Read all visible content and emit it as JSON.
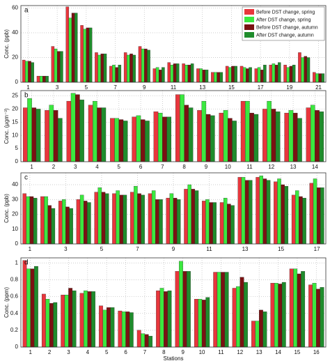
{
  "chart_data": [
    {
      "type": "bar",
      "panel_label": "a",
      "ylabel": "Conc. (ppb)",
      "grid": true,
      "legend": "upper right",
      "categories": [
        "1",
        null,
        "3",
        null,
        "5",
        null,
        "7",
        null,
        "9",
        null,
        "11",
        null,
        "13",
        null,
        "15",
        null,
        "17",
        null,
        "19",
        null,
        "21"
      ],
      "ylim": [
        0,
        62
      ],
      "yticks": [
        0,
        20,
        40,
        60
      ],
      "series": [
        {
          "name": "Before DST change, spring",
          "color": "#e8363c",
          "values": [
            18,
            5,
            29,
            61,
            46,
            24,
            13,
            24,
            29,
            11,
            16,
            15,
            11,
            8,
            13,
            13,
            11,
            14,
            14,
            24,
            8
          ]
        },
        {
          "name": "After DST change, spring",
          "color": "#3be83f",
          "values": [
            17,
            5,
            27,
            52,
            43,
            22,
            14,
            22,
            27,
            12,
            14,
            14,
            11,
            8,
            12,
            12,
            12,
            15,
            12,
            20,
            7
          ]
        },
        {
          "name": "Before DST change, autumn",
          "color": "#7a1212",
          "values": [
            17,
            5,
            25,
            56,
            44,
            23,
            12,
            23,
            27,
            10,
            15,
            14,
            10,
            8,
            13,
            11,
            10,
            14,
            13,
            21,
            7
          ]
        },
        {
          "name": "After DST change, autumn",
          "color": "#1f8c2c",
          "values": [
            16,
            5,
            25,
            56,
            44,
            23,
            14,
            22,
            26,
            12,
            15,
            15,
            10,
            8,
            13,
            12,
            14,
            16,
            14,
            20,
            7
          ]
        }
      ]
    },
    {
      "type": "bar",
      "panel_label": "b",
      "ylabel": "Conc. (μgm⁻³)",
      "grid": true,
      "categories": [
        "1",
        "2",
        "3",
        "4",
        "5",
        "6",
        "7",
        "8",
        "9",
        "10",
        "11",
        "12",
        "13",
        "14"
      ],
      "ylim": [
        0,
        27
      ],
      "yticks": [
        0,
        5,
        10,
        15,
        20,
        25
      ],
      "series": [
        {
          "color": "#e8363c",
          "values": [
            20.5,
            19.5,
            23,
            21.5,
            16.5,
            17,
            19,
            25.5,
            19.5,
            18.5,
            23,
            20,
            18.5,
            20.5
          ]
        },
        {
          "color": "#3be83f",
          "values": [
            24,
            21.5,
            26,
            23,
            16.5,
            17.5,
            18.5,
            25.5,
            23,
            19.5,
            23,
            23,
            19.5,
            21.5
          ]
        },
        {
          "color": "#7a1212",
          "values": [
            20.5,
            19.5,
            25.5,
            20.5,
            16,
            16,
            17,
            21.5,
            18,
            16.5,
            18.5,
            20,
            18.5,
            19.5
          ]
        },
        {
          "color": "#1f8c2c",
          "values": [
            20,
            16.5,
            23.5,
            20.5,
            15.5,
            15.5,
            17,
            20.5,
            17.5,
            15.5,
            18,
            19,
            16.5,
            19
          ]
        }
      ]
    },
    {
      "type": "bar",
      "panel_label": "c",
      "ylabel": "Conc. (ppb)",
      "grid": true,
      "categories": [
        "1",
        null,
        "3",
        null,
        "5",
        null,
        "7",
        null,
        "9",
        null,
        "11",
        null,
        "13",
        null,
        "15",
        null,
        "17"
      ],
      "ylim": [
        0,
        48
      ],
      "yticks": [
        0,
        10,
        20,
        30,
        40
      ],
      "series": [
        {
          "color": "#e8363c",
          "values": [
            34,
            32,
            29,
            30,
            35,
            34,
            35,
            34,
            31,
            37,
            29,
            28,
            45,
            45,
            42,
            33,
            41
          ]
        },
        {
          "color": "#3be83f",
          "values": [
            32,
            32,
            30,
            33,
            38,
            36,
            39,
            36,
            34,
            40,
            30,
            31,
            45,
            46,
            44,
            36,
            44
          ]
        },
        {
          "color": "#7a1212",
          "values": [
            32,
            26,
            25,
            29,
            35,
            33,
            34,
            30,
            31,
            37,
            28,
            27,
            43,
            44,
            40,
            32,
            38
          ]
        },
        {
          "color": "#1f8c2c",
          "values": [
            31,
            24,
            24,
            28,
            34,
            33,
            33,
            30,
            30,
            36,
            28,
            26,
            43,
            43,
            39,
            31,
            38
          ]
        }
      ]
    },
    {
      "type": "bar",
      "panel_label": "d",
      "ylabel": "Conc. (ppm)",
      "xlabel": "Stations",
      "grid": true,
      "categories": [
        "1",
        "2",
        "3",
        "4",
        "5",
        "6",
        "7",
        "8",
        "9",
        "10",
        "11",
        "12",
        "13",
        "14",
        "15",
        "16"
      ],
      "ylim": [
        0,
        1.06
      ],
      "yticks": [
        0,
        0.2,
        0.4,
        0.6,
        0.8,
        1
      ],
      "series": [
        {
          "color": "#e8363c",
          "values": [
            1.03,
            0.63,
            0.62,
            0.64,
            0.49,
            0.43,
            0.2,
            0.67,
            0.9,
            0.57,
            0.89,
            0.7,
            0.31,
            0.76,
            0.93,
            0.74
          ]
        },
        {
          "color": "#3be83f",
          "values": [
            0.93,
            0.57,
            0.62,
            0.67,
            0.44,
            0.42,
            0.16,
            0.7,
            1.02,
            0.57,
            0.89,
            0.72,
            0.31,
            0.76,
            0.93,
            0.76
          ]
        },
        {
          "color": "#7a1212",
          "values": [
            0.93,
            0.52,
            0.7,
            0.66,
            0.47,
            0.42,
            0.15,
            0.66,
            0.9,
            0.56,
            0.89,
            0.83,
            0.44,
            0.75,
            0.87,
            0.69
          ]
        },
        {
          "color": "#1f8c2c",
          "values": [
            0.96,
            0.53,
            0.67,
            0.66,
            0.47,
            0.41,
            0.13,
            0.67,
            0.9,
            0.59,
            0.89,
            0.77,
            0.42,
            0.77,
            0.9,
            0.71
          ]
        }
      ]
    }
  ]
}
